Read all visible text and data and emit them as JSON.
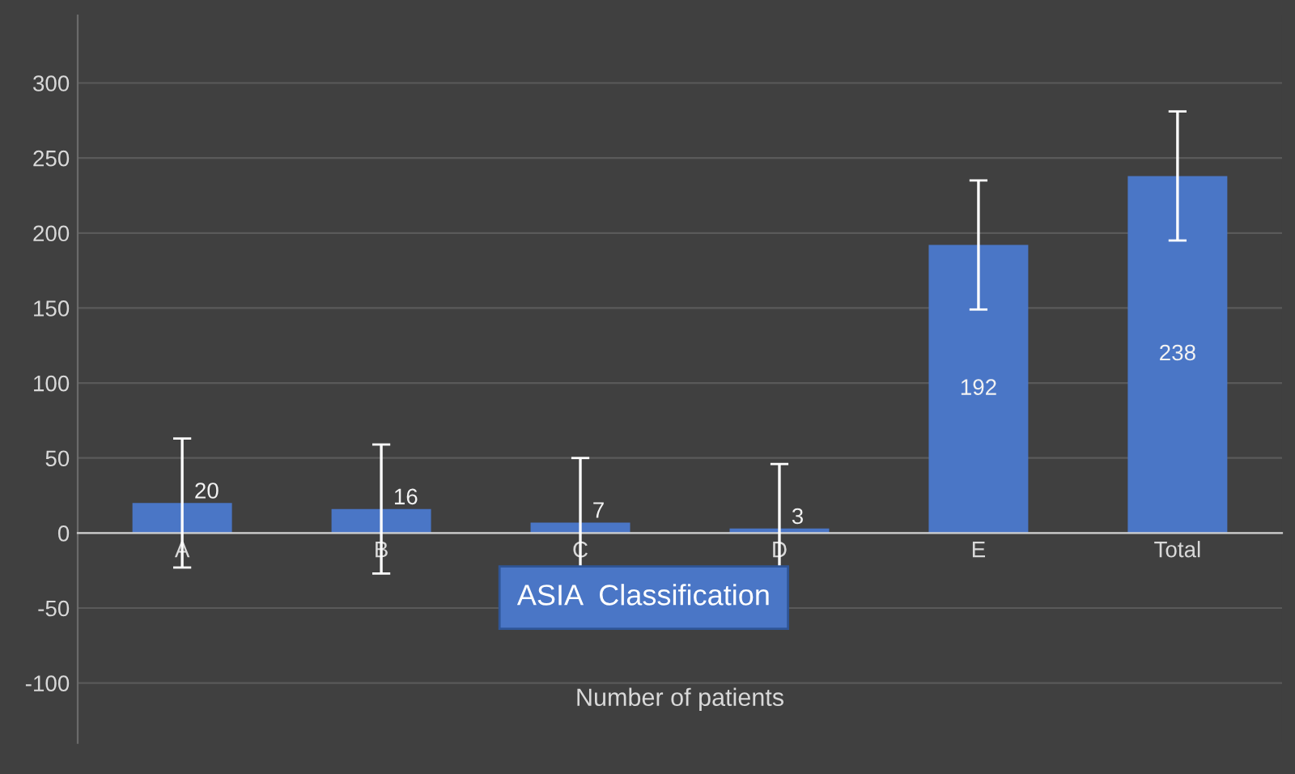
{
  "chart_data": {
    "type": "bar",
    "xlabel": "Number of patients",
    "categories": [
      "A",
      "B",
      "C",
      "D",
      "E",
      "Total"
    ],
    "values": [
      20,
      16,
      7,
      3,
      192,
      238
    ],
    "errors": [
      43,
      43,
      43,
      43,
      43,
      43
    ],
    "color": "#4a76c6",
    "ylim": [
      -140,
      345
    ],
    "yticks": [
      -100,
      -50,
      0,
      50,
      100,
      150,
      200,
      250,
      300
    ],
    "grid": "y",
    "data_labels": true,
    "annotations": [
      "ASIA  Classification"
    ]
  }
}
